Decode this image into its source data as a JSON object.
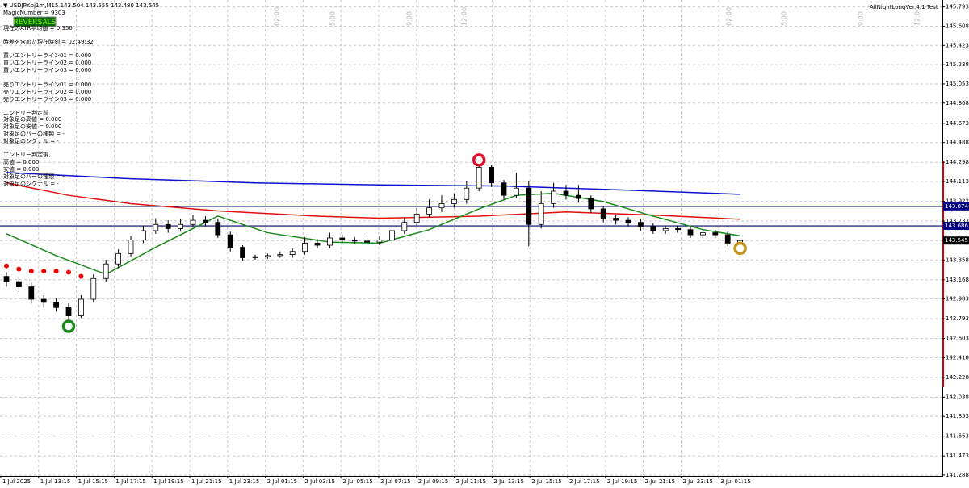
{
  "chart_data": {
    "type": "candlestick",
    "header": "▼ USDJPY.oj1m,M15  143.504 143.555 143.480 143.545",
    "magic": "MagicNumber = 9303",
    "button": "REVERSALS",
    "ea_name": "AllNightLongVer.4.1 Test",
    "info_lines": [
      "現在のATR平均値 = 0.356",
      "時差を含めた現在時刻 = 02:49:32",
      "買いエントリーライン01 = 0.000",
      "買いエントリーライン02 = 0.000",
      "買いエントリーライン03 = 0.000",
      "売りエントリーライン01 = 0.000",
      "売りエントリーライン02 = 0.000",
      "売りエントリーライン03 = 0.000",
      "エントリー判定前",
      "対象足の高値 = 0.000",
      "対象足の安値 = 0.000",
      "対象足のバーの種類 = -",
      "対象足のシグナル = -",
      "エントリー判定後",
      "高値 = 0.000",
      "安値 = 0.000",
      "対象足のバーの種類 = -",
      "対象足のシグナル = -"
    ],
    "session_labels": [
      "02:00",
      "5:00",
      "9:00",
      "12:00",
      "02:00",
      "5:00",
      "9:00",
      "12:00"
    ],
    "xlabels": [
      "1 Jul 2025",
      "1 Jul 13:15",
      "1 Jul 15:15",
      "1 Jul 17:15",
      "1 Jul 19:15",
      "1 Jul 21:15",
      "1 Jul 23:15",
      "2 Jul 01:15",
      "2 Jul 03:15",
      "2 Jul 05:15",
      "2 Jul 07:15",
      "2 Jul 09:15",
      "2 Jul 11:15",
      "2 Jul 13:15",
      "2 Jul 15:15",
      "2 Jul 17:15",
      "2 Jul 19:15",
      "2 Jul 21:15",
      "2 Jul 23:15",
      "3 Jul 01:15"
    ],
    "ylim": [
      141.28,
      145.86
    ],
    "yticks": [
      145.793,
      145.608,
      145.423,
      145.238,
      145.053,
      144.868,
      144.673,
      144.488,
      144.298,
      144.113,
      143.922,
      143.733,
      143.545,
      143.358,
      143.168,
      142.983,
      142.793,
      142.603,
      142.418,
      142.228,
      142.038,
      141.853,
      141.663,
      141.473,
      141.288
    ],
    "grid": true,
    "ohlc": [
      [
        143.2,
        143.24,
        143.1,
        143.15
      ],
      [
        143.15,
        143.19,
        143.05,
        143.1
      ],
      [
        143.1,
        143.14,
        142.94,
        142.98
      ],
      [
        142.98,
        143.02,
        142.9,
        142.95
      ],
      [
        142.95,
        142.99,
        142.86,
        142.9
      ],
      [
        142.9,
        142.94,
        142.78,
        142.82
      ],
      [
        142.82,
        143.02,
        142.8,
        142.98
      ],
      [
        142.98,
        143.22,
        142.95,
        143.18
      ],
      [
        143.18,
        143.36,
        143.15,
        143.32
      ],
      [
        143.32,
        143.46,
        143.28,
        143.42
      ],
      [
        143.42,
        143.59,
        143.39,
        143.55
      ],
      [
        143.55,
        143.69,
        143.52,
        143.64
      ],
      [
        143.64,
        143.76,
        143.61,
        143.7
      ],
      [
        143.7,
        143.74,
        143.62,
        143.66
      ],
      [
        143.66,
        143.75,
        143.63,
        143.7
      ],
      [
        143.7,
        143.79,
        143.67,
        143.74
      ],
      [
        143.74,
        143.78,
        143.68,
        143.72
      ],
      [
        143.72,
        143.75,
        143.57,
        143.6
      ],
      [
        143.6,
        143.63,
        143.44,
        143.48
      ],
      [
        143.48,
        143.5,
        143.35,
        143.38
      ],
      [
        143.38,
        143.41,
        143.36,
        143.39
      ],
      [
        143.39,
        143.42,
        143.37,
        143.4
      ],
      [
        143.4,
        143.44,
        143.38,
        143.41
      ],
      [
        143.41,
        143.47,
        143.38,
        143.44
      ],
      [
        143.44,
        143.58,
        143.41,
        143.52
      ],
      [
        143.52,
        143.56,
        143.47,
        143.5
      ],
      [
        143.5,
        143.62,
        143.47,
        143.57
      ],
      [
        143.57,
        143.6,
        143.52,
        143.55
      ],
      [
        143.55,
        143.58,
        143.51,
        143.54
      ],
      [
        143.54,
        143.57,
        143.5,
        143.53
      ],
      [
        143.53,
        143.59,
        143.5,
        143.55
      ],
      [
        143.55,
        143.68,
        143.52,
        143.64
      ],
      [
        143.64,
        143.76,
        143.61,
        143.72
      ],
      [
        143.72,
        143.86,
        143.69,
        143.8
      ],
      [
        143.8,
        143.94,
        143.77,
        143.86
      ],
      [
        143.86,
        143.98,
        143.82,
        143.9
      ],
      [
        143.9,
        144.0,
        143.86,
        143.94
      ],
      [
        143.94,
        144.12,
        143.9,
        144.05
      ],
      [
        144.05,
        144.29,
        144.02,
        144.25
      ],
      [
        144.25,
        144.27,
        144.06,
        144.1
      ],
      [
        144.1,
        144.13,
        143.94,
        143.98
      ],
      [
        143.98,
        144.2,
        143.95,
        144.05
      ],
      [
        144.05,
        144.12,
        143.49,
        143.7
      ],
      [
        143.7,
        144.02,
        143.66,
        143.9
      ],
      [
        143.9,
        144.1,
        143.86,
        144.02
      ],
      [
        144.02,
        144.08,
        143.94,
        143.98
      ],
      [
        143.98,
        144.08,
        143.91,
        143.95
      ],
      [
        143.95,
        143.98,
        143.81,
        143.85
      ],
      [
        143.85,
        143.88,
        143.72,
        143.76
      ],
      [
        143.76,
        143.79,
        143.7,
        143.74
      ],
      [
        143.74,
        143.77,
        143.68,
        143.72
      ],
      [
        143.72,
        143.75,
        143.64,
        143.68
      ],
      [
        143.68,
        143.71,
        143.61,
        143.64
      ],
      [
        143.64,
        143.69,
        143.61,
        143.66
      ],
      [
        143.66,
        143.69,
        143.62,
        143.65
      ],
      [
        143.65,
        143.68,
        143.57,
        143.6
      ],
      [
        143.6,
        143.65,
        143.57,
        143.62
      ],
      [
        143.62,
        143.65,
        143.57,
        143.6
      ],
      [
        143.6,
        143.63,
        143.49,
        143.52
      ],
      [
        143.504,
        143.555,
        143.48,
        143.545
      ]
    ],
    "lines": [
      {
        "color": "#1010d0",
        "x": [
          0,
          10,
          20,
          30,
          40,
          50,
          59
        ],
        "values": [
          144.2,
          144.14,
          144.1,
          144.08,
          144.07,
          144.03,
          143.99
        ]
      },
      {
        "color": "#e01010",
        "x": [
          0,
          5,
          10,
          17,
          25,
          30,
          38,
          45,
          52,
          59
        ],
        "values": [
          144.1,
          143.98,
          143.9,
          143.83,
          143.78,
          143.76,
          143.78,
          143.82,
          143.79,
          143.75
        ]
      },
      {
        "color": "#1a8a1a",
        "x": [
          0,
          4,
          8,
          12,
          17,
          21,
          26,
          30,
          34,
          38,
          41,
          44,
          48,
          52,
          56,
          59
        ],
        "values": [
          143.61,
          143.4,
          143.22,
          143.48,
          143.78,
          143.62,
          143.53,
          143.52,
          143.65,
          143.85,
          143.98,
          144.0,
          143.92,
          143.78,
          143.65,
          143.59
        ]
      }
    ],
    "signal_dots": {
      "color": "#ee0000",
      "x": [
        0,
        1,
        2,
        3,
        4,
        5,
        6
      ],
      "values": [
        143.3,
        143.27,
        143.25,
        143.25,
        143.25,
        143.24,
        143.2
      ]
    },
    "rings": [
      {
        "x": 5,
        "value": 142.72,
        "color": "#1a8a1a"
      },
      {
        "x": 38,
        "value": 144.32,
        "color": "#e0102a"
      },
      {
        "x": 59,
        "value": 143.47,
        "color": "#c8961e"
      }
    ],
    "hlines": [
      143.874,
      143.686
    ],
    "hline_color": "#000080"
  }
}
